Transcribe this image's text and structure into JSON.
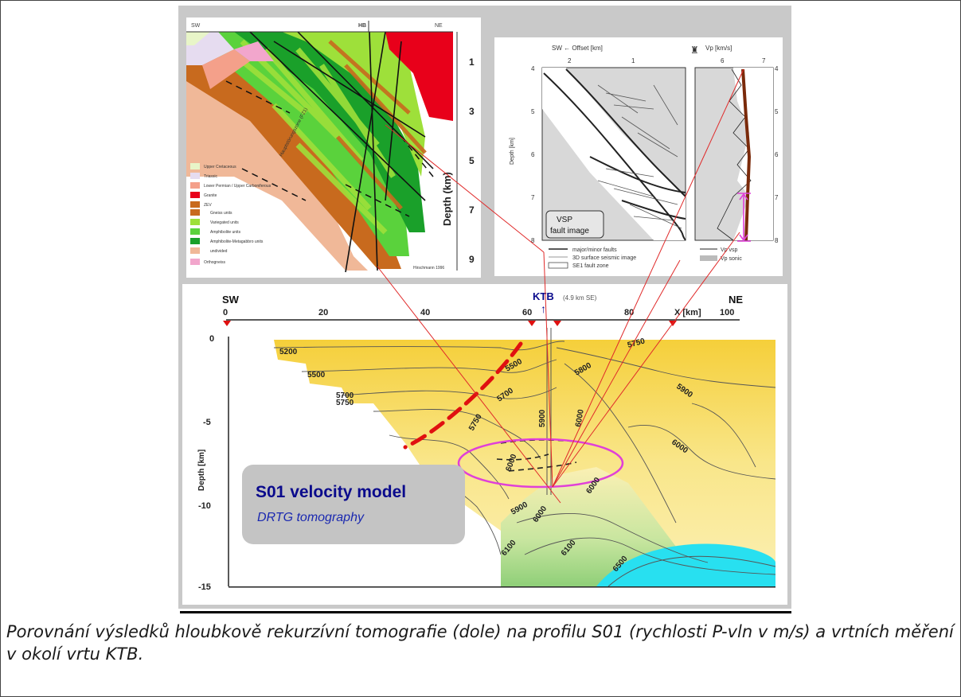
{
  "geology": {
    "sw": "SW",
    "hb": "HB",
    "ne": "NE",
    "depth_axis_label": "Depth (km)",
    "depth_ticks": [
      "1",
      "3",
      "5",
      "7",
      "9"
    ],
    "fault_label": "Hauptstörungszone (FZ1)",
    "credit": "Hirschmann 1996",
    "legend": [
      {
        "label": "Upper Cretaceous",
        "color": "#e8f5c8"
      },
      {
        "label": "Triassic",
        "color": "#e6dcf0"
      },
      {
        "label": "Lower Permian / Upper Carboniferous",
        "color": "#f4a08a"
      },
      {
        "label": "Granite",
        "color": "#e8001a"
      },
      {
        "label": "ZEV",
        "color": "#c86a1e"
      },
      {
        "label": "Gneiss units",
        "color": "#c86a1e"
      },
      {
        "label": "Variegated units",
        "color": "#9ee03a"
      },
      {
        "label": "Amphibolite units",
        "color": "#5ad23c"
      },
      {
        "label": "Amphibolite-Metagabbro units",
        "color": "#1aa02a"
      },
      {
        "label": "undivided",
        "color": "#f0b898"
      },
      {
        "label": "Orthogneiss",
        "color": "#f2a6cc"
      }
    ]
  },
  "vsp": {
    "offset_title": "SW ← Offset [km]",
    "offset_ticks": [
      "2",
      "1"
    ],
    "vp_title": "Vp [km/s]",
    "vp_ticks": [
      "6",
      "7"
    ],
    "depth_label": "Depth [km]",
    "depth_ticks": [
      "4",
      "5",
      "6",
      "7",
      "8"
    ],
    "box_line1": "VSP",
    "box_line2": "fault image",
    "legend": [
      "major/minor faults",
      "3D surface seismic image",
      "SE1 fault zone"
    ],
    "vp_legend": [
      "Vp vsp",
      "Vp sonic"
    ]
  },
  "tomo": {
    "sw": "SW",
    "ne": "NE",
    "ktb": "KTB",
    "ktb_note": "(4.9 km SE)",
    "x_ticks": [
      "0",
      "20",
      "40",
      "60",
      "80",
      "100"
    ],
    "x_label": "X [km]",
    "y_ticks": [
      "0",
      "-5",
      "-10",
      "-15"
    ],
    "y_label": "Depth [km]",
    "contours": [
      "5200",
      "5500",
      "5700",
      "5750",
      "5500",
      "5700",
      "5750",
      "5900",
      "5800",
      "5750",
      "5900",
      "6000",
      "6000",
      "6000",
      "5900",
      "6000",
      "6100",
      "6000",
      "6100",
      "6500"
    ],
    "title": "S01 velocity model",
    "subtitle": "DRTG tomography",
    "colors": {
      "yellow": "#f5cf3a",
      "lightyellow": "#fbf0b4",
      "green": "#9bd27a",
      "cyan": "#28e0f0",
      "magenta": "#e040d8",
      "red": "#e01010",
      "navy": "#0a0a8c"
    }
  },
  "caption": "Porovnání výsledků hloubkově rekurzívní tomografie (dole) na profilu S01 (rychlosti P-vln v m/s) a vrtních měření v okolí vrtu KTB."
}
